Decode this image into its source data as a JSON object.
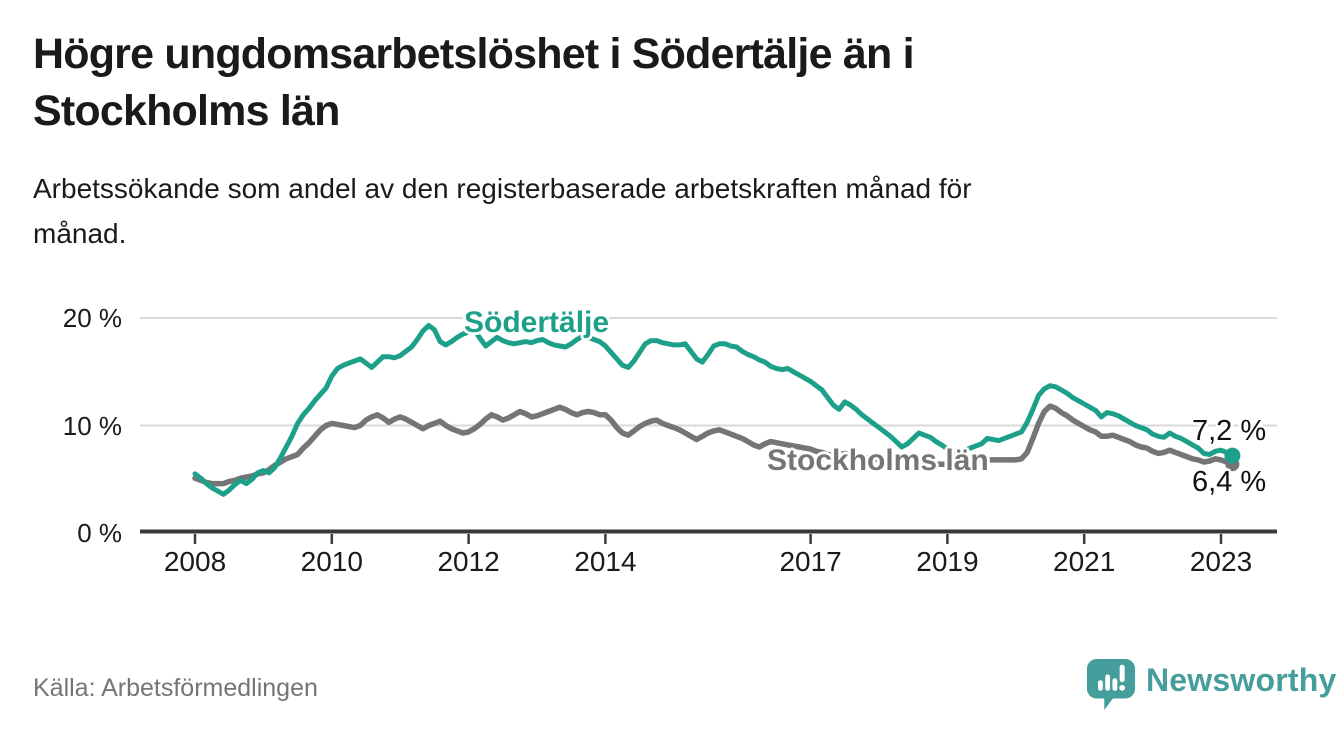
{
  "header": {
    "title": "Högre ungdomsarbetslöshet i Södertälje än i Stockholms län",
    "title_lines": [
      "Högre ungdomsarbetslöshet i Södertälje än i",
      "Stockholms län"
    ],
    "subtitle": "Arbetssökande som andel av den registerbaserade arbetskraften månad för månad.",
    "subtitle_lines": [
      "Arbetssökande som andel av den registerbaserade arbetskraften månad för",
      "månad."
    ]
  },
  "footer": {
    "source": "Källa: Arbetsförmedlingen",
    "brand": "Newsworthy",
    "brand_icon": "newsworthy-speech-bubble-bar-chart-icon"
  },
  "colors": {
    "sodertalje_line": "#1ca08a",
    "stockholm_line": "#757575",
    "axis": "#3a3a3a",
    "gridline": "#d9d9d9",
    "text": "#1a1a1a",
    "source_text": "#757575",
    "brand_teal": "#459e9c",
    "background": "#ffffff"
  },
  "chart_data": {
    "type": "line",
    "title": "Högre ungdomsarbetslöshet i Södertälje än i Stockholms län",
    "xlabel": "",
    "ylabel": "Arbetssökande som andel av den registerbaserade arbetskraften (%)",
    "x_unit": "month",
    "x_start": "2008-01",
    "x_end": "2023-03",
    "ylim": [
      0,
      21.5
    ],
    "grid": "horizontal",
    "legend_position": "inline-labels",
    "y_ticks": [
      {
        "label": "20 %",
        "value": 20
      },
      {
        "label": "10 %",
        "value": 10
      },
      {
        "label": "0 %",
        "value": 0
      }
    ],
    "x_ticks": [
      {
        "label": "2008",
        "year": 2008
      },
      {
        "label": "2010",
        "year": 2010
      },
      {
        "label": "2012",
        "year": 2012
      },
      {
        "label": "2014",
        "year": 2014
      },
      {
        "label": "2017",
        "year": 2017
      },
      {
        "label": "2019",
        "year": 2019
      },
      {
        "label": "2021",
        "year": 2021
      },
      {
        "label": "2023",
        "year": 2023
      }
    ],
    "series": [
      {
        "name": "Södertälje",
        "color": "#1ca08a",
        "end_label": "7,2 %",
        "end_value": 7.2,
        "values": [
          5.5,
          5.1,
          4.6,
          4.2,
          3.9,
          3.6,
          4.0,
          4.5,
          4.9,
          4.6,
          5.0,
          5.6,
          5.8,
          5.6,
          6.1,
          7.0,
          8.0,
          9.0,
          10.2,
          11.0,
          11.6,
          12.3,
          12.9,
          13.5,
          14.6,
          15.3,
          15.6,
          15.8,
          16.0,
          16.2,
          15.8,
          15.4,
          15.9,
          16.4,
          16.4,
          16.3,
          16.5,
          16.9,
          17.3,
          18.0,
          18.8,
          19.3,
          18.9,
          17.8,
          17.5,
          17.8,
          18.2,
          18.5,
          18.7,
          18.9,
          18.1,
          17.4,
          17.8,
          18.2,
          17.9,
          17.7,
          17.6,
          17.7,
          17.8,
          17.7,
          17.9,
          18.0,
          17.7,
          17.5,
          17.4,
          17.3,
          17.6,
          18.0,
          18.3,
          18.2,
          18.0,
          17.8,
          17.4,
          16.8,
          16.2,
          15.6,
          15.4,
          16.0,
          16.8,
          17.6,
          17.9,
          17.9,
          17.7,
          17.6,
          17.5,
          17.5,
          17.6,
          16.9,
          16.2,
          15.9,
          16.6,
          17.4,
          17.6,
          17.6,
          17.4,
          17.3,
          16.9,
          16.6,
          16.4,
          16.1,
          15.9,
          15.5,
          15.3,
          15.2,
          15.3,
          15.0,
          14.7,
          14.4,
          14.1,
          13.7,
          13.3,
          12.6,
          11.9,
          11.5,
          12.2,
          11.9,
          11.5,
          11.0,
          10.6,
          10.2,
          9.8,
          9.4,
          9.0,
          8.5,
          8.0,
          8.3,
          8.8,
          9.3,
          9.1,
          8.9,
          8.5,
          8.2,
          7.8,
          7.6,
          7.5,
          7.7,
          7.9,
          8.1,
          8.3,
          8.8,
          8.7,
          8.6,
          8.8,
          9.0,
          9.2,
          9.4,
          10.3,
          11.5,
          12.8,
          13.4,
          13.7,
          13.6,
          13.3,
          13.0,
          12.6,
          12.3,
          12.0,
          11.7,
          11.4,
          10.8,
          11.2,
          11.1,
          10.9,
          10.6,
          10.3,
          10.0,
          9.8,
          9.6,
          9.2,
          9.0,
          8.9,
          9.3,
          9.0,
          8.8,
          8.5,
          8.2,
          7.9,
          7.4,
          7.3,
          7.6,
          7.7,
          7.5,
          7.2
        ]
      },
      {
        "name": "Stockholms län",
        "color": "#757575",
        "end_label": "6,4 %",
        "end_value": 6.4,
        "values": [
          5.1,
          4.9,
          4.7,
          4.6,
          4.6,
          4.6,
          4.8,
          4.9,
          5.1,
          5.2,
          5.3,
          5.5,
          5.6,
          5.9,
          6.3,
          6.6,
          6.9,
          7.1,
          7.3,
          7.9,
          8.4,
          9.0,
          9.6,
          10.0,
          10.2,
          10.1,
          10.0,
          9.9,
          9.8,
          10.0,
          10.5,
          10.8,
          11.0,
          10.7,
          10.3,
          10.6,
          10.8,
          10.6,
          10.3,
          10.0,
          9.7,
          10.0,
          10.2,
          10.4,
          10.0,
          9.7,
          9.5,
          9.3,
          9.4,
          9.7,
          10.1,
          10.6,
          11.0,
          10.8,
          10.5,
          10.7,
          11.0,
          11.3,
          11.1,
          10.8,
          10.9,
          11.1,
          11.3,
          11.5,
          11.7,
          11.5,
          11.2,
          11.0,
          11.2,
          11.3,
          11.2,
          11.0,
          11.0,
          10.5,
          9.8,
          9.3,
          9.1,
          9.5,
          9.9,
          10.2,
          10.4,
          10.5,
          10.2,
          10.0,
          9.8,
          9.6,
          9.3,
          9.0,
          8.7,
          9.0,
          9.3,
          9.5,
          9.6,
          9.4,
          9.2,
          9.0,
          8.8,
          8.5,
          8.2,
          8.0,
          8.3,
          8.5,
          8.4,
          8.3,
          8.2,
          8.1,
          8.0,
          7.9,
          7.8,
          7.6,
          7.5,
          7.3,
          7.2,
          7.3,
          7.4,
          7.3,
          7.2,
          7.1,
          7.0,
          6.9,
          6.8,
          6.7,
          6.6,
          6.5,
          6.4,
          6.4,
          6.5,
          6.6,
          6.5,
          6.5,
          6.4,
          6.4,
          6.4,
          6.4,
          6.5,
          6.5,
          6.6,
          6.6,
          6.7,
          6.8,
          6.8,
          6.8,
          6.8,
          6.8,
          6.8,
          6.9,
          7.5,
          8.8,
          10.2,
          11.3,
          11.8,
          11.6,
          11.2,
          10.9,
          10.5,
          10.2,
          9.9,
          9.6,
          9.4,
          9.0,
          9.0,
          9.1,
          8.9,
          8.7,
          8.5,
          8.2,
          8.0,
          7.9,
          7.6,
          7.4,
          7.5,
          7.7,
          7.5,
          7.3,
          7.1,
          6.9,
          6.8,
          6.6,
          6.7,
          6.9,
          6.8,
          6.6,
          6.4
        ]
      }
    ]
  }
}
